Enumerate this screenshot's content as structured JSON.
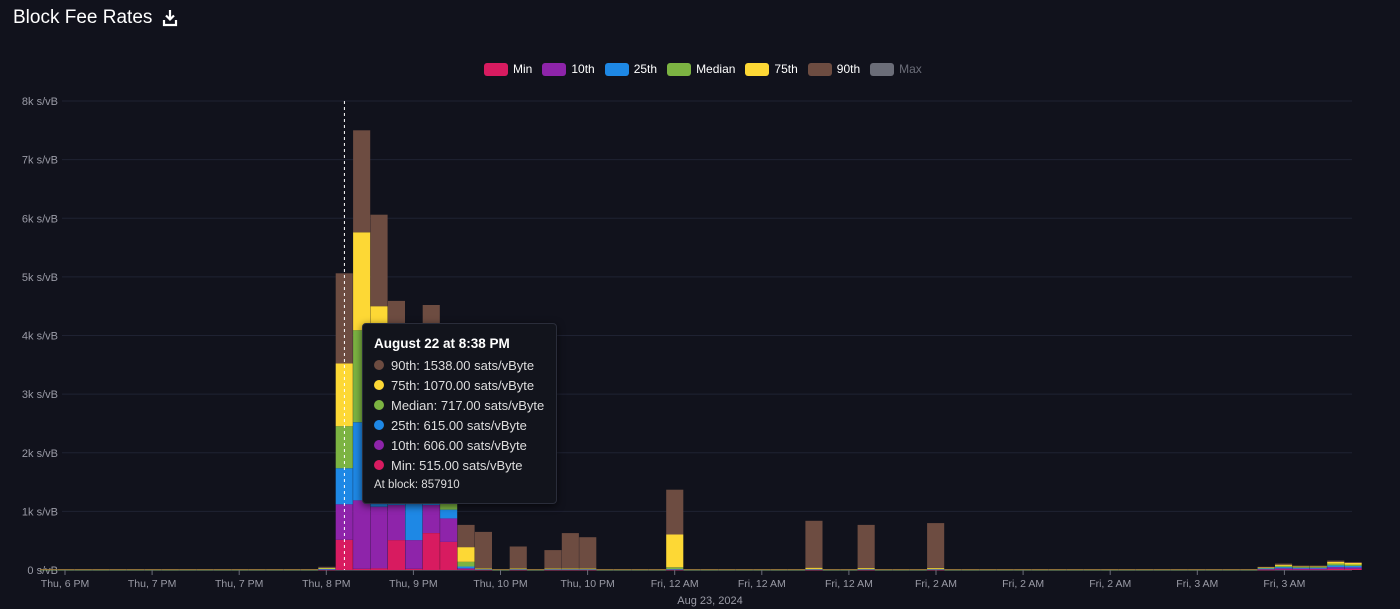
{
  "header": {
    "title": "Block Fee Rates",
    "download_icon": "download-icon"
  },
  "legend": [
    {
      "label": "Min",
      "color": "#d81b60",
      "active": true
    },
    {
      "label": "10th",
      "color": "#8e24aa",
      "active": true
    },
    {
      "label": "25th",
      "color": "#1e88e5",
      "active": true
    },
    {
      "label": "Median",
      "color": "#7cb342",
      "active": true
    },
    {
      "label": "75th",
      "color": "#fdd835",
      "active": true
    },
    {
      "label": "90th",
      "color": "#6d4c41",
      "active": true
    },
    {
      "label": "Max",
      "color": "#6b6d78",
      "active": false
    }
  ],
  "tooltip": {
    "title": "August 22 at 8:38 PM",
    "rows": [
      {
        "text": "90th: 1538.00 sats/vByte",
        "color": "#6d4c41"
      },
      {
        "text": "75th: 1070.00 sats/vByte",
        "color": "#fdd835"
      },
      {
        "text": "Median: 717.00 sats/vByte",
        "color": "#7cb342"
      },
      {
        "text": "25th: 615.00 sats/vByte",
        "color": "#1e88e5"
      },
      {
        "text": "10th: 606.00 sats/vByte",
        "color": "#8e24aa"
      },
      {
        "text": "Min: 515.00 sats/vByte",
        "color": "#d81b60"
      }
    ],
    "block": "At block: 857910"
  },
  "chart_data": {
    "type": "bar",
    "stacked": true,
    "title": "Block Fee Rates",
    "ylim": [
      0,
      8000
    ],
    "yticks": [
      "0 s/vB",
      "1k s/vB",
      "2k s/vB",
      "3k s/vB",
      "4k s/vB",
      "5k s/vB",
      "6k s/vB",
      "7k s/vB",
      "8k s/vB"
    ],
    "xticks": [
      "Thu, 6 PM",
      "Thu, 7 PM",
      "Thu, 7 PM",
      "Thu, 8 PM",
      "Thu, 9 PM",
      "Thu, 10 PM",
      "Thu, 10 PM",
      "Fri, 12 AM",
      "Fri, 12 AM",
      "Fri, 12 AM",
      "Fri, 2 AM",
      "Fri, 2 AM",
      "Fri, 2 AM",
      "Fri, 3 AM",
      "Fri, 3 AM"
    ],
    "xlabel": "Aug 23, 2024",
    "grid": true,
    "legend_position": "top-center",
    "highlighted_index": 17,
    "series": [
      {
        "name": "Min",
        "color": "#d81b60",
        "values": [
          1,
          1,
          1,
          1,
          1,
          1,
          1,
          1,
          1,
          1,
          1,
          1,
          1,
          1,
          1,
          1,
          5,
          515,
          20,
          30,
          510,
          20,
          630,
          480,
          10,
          5,
          1,
          5,
          1,
          5,
          5,
          5,
          1,
          1,
          1,
          1,
          5,
          1,
          1,
          1,
          1,
          1,
          1,
          1,
          5,
          1,
          1,
          5,
          1,
          1,
          1,
          5,
          1,
          1,
          1,
          1,
          1,
          1,
          1,
          1,
          1,
          1,
          1,
          1,
          1,
          1,
          1,
          1,
          1,
          1,
          5,
          10,
          10,
          10,
          20,
          20
        ]
      },
      {
        "name": "10th",
        "color": "#8e24aa",
        "values": [
          1,
          1,
          1,
          1,
          1,
          1,
          1,
          1,
          1,
          1,
          1,
          1,
          1,
          1,
          1,
          1,
          5,
          606,
          1170,
          1050,
          600,
          490,
          480,
          400,
          20,
          5,
          1,
          5,
          1,
          5,
          5,
          5,
          1,
          1,
          1,
          1,
          5,
          1,
          1,
          1,
          1,
          1,
          1,
          1,
          5,
          1,
          1,
          5,
          1,
          1,
          1,
          5,
          1,
          1,
          1,
          1,
          1,
          1,
          1,
          1,
          1,
          1,
          1,
          1,
          1,
          1,
          1,
          1,
          1,
          1,
          10,
          20,
          15,
          15,
          30,
          25
        ]
      },
      {
        "name": "25th",
        "color": "#1e88e5",
        "values": [
          1,
          1,
          1,
          1,
          1,
          1,
          1,
          1,
          1,
          1,
          1,
          1,
          1,
          1,
          1,
          1,
          5,
          615,
          1330,
          1200,
          700,
          680,
          600,
          150,
          30,
          5,
          1,
          5,
          1,
          5,
          5,
          5,
          1,
          1,
          1,
          1,
          5,
          1,
          1,
          1,
          1,
          1,
          1,
          1,
          5,
          1,
          1,
          5,
          1,
          1,
          1,
          5,
          1,
          1,
          1,
          1,
          1,
          1,
          1,
          1,
          1,
          1,
          1,
          1,
          1,
          1,
          1,
          1,
          1,
          1,
          10,
          20,
          15,
          15,
          30,
          25
        ]
      },
      {
        "name": "Median",
        "color": "#7cb342",
        "values": [
          2,
          2,
          2,
          2,
          2,
          2,
          2,
          2,
          2,
          2,
          2,
          2,
          2,
          2,
          2,
          2,
          10,
          717,
          1570,
          1100,
          800,
          800,
          800,
          600,
          80,
          5,
          2,
          5,
          2,
          5,
          5,
          5,
          2,
          2,
          2,
          2,
          30,
          2,
          2,
          2,
          2,
          2,
          2,
          2,
          5,
          2,
          2,
          5,
          2,
          2,
          2,
          5,
          2,
          2,
          2,
          2,
          2,
          2,
          2,
          2,
          2,
          2,
          2,
          2,
          2,
          2,
          2,
          2,
          2,
          2,
          10,
          20,
          15,
          15,
          30,
          25
        ]
      },
      {
        "name": "75th",
        "color": "#fdd835",
        "values": [
          3,
          3,
          3,
          3,
          3,
          3,
          3,
          3,
          3,
          3,
          3,
          3,
          3,
          3,
          3,
          3,
          10,
          1070,
          1670,
          1120,
          900,
          900,
          900,
          700,
          250,
          10,
          3,
          10,
          3,
          10,
          10,
          10,
          3,
          3,
          3,
          3,
          560,
          3,
          3,
          3,
          3,
          3,
          3,
          3,
          20,
          3,
          3,
          15,
          3,
          3,
          3,
          15,
          3,
          3,
          3,
          3,
          3,
          3,
          3,
          3,
          3,
          3,
          3,
          3,
          3,
          3,
          3,
          3,
          3,
          3,
          10,
          20,
          10,
          10,
          30,
          25
        ]
      },
      {
        "name": "90th",
        "color": "#6d4c41",
        "values": [
          7,
          7,
          7,
          7,
          7,
          7,
          7,
          7,
          7,
          7,
          7,
          7,
          7,
          7,
          7,
          7,
          20,
          1538,
          1740,
          1560,
          1080,
          1100,
          1110,
          900,
          380,
          620,
          7,
          370,
          7,
          310,
          600,
          530,
          7,
          7,
          7,
          7,
          765,
          7,
          7,
          7,
          7,
          7,
          7,
          7,
          800,
          7,
          7,
          735,
          7,
          7,
          7,
          765,
          7,
          7,
          7,
          7,
          7,
          7,
          7,
          7,
          7,
          7,
          7,
          7,
          7,
          7,
          7,
          7,
          7,
          7,
          10,
          20,
          10,
          10,
          20,
          15
        ]
      }
    ]
  }
}
